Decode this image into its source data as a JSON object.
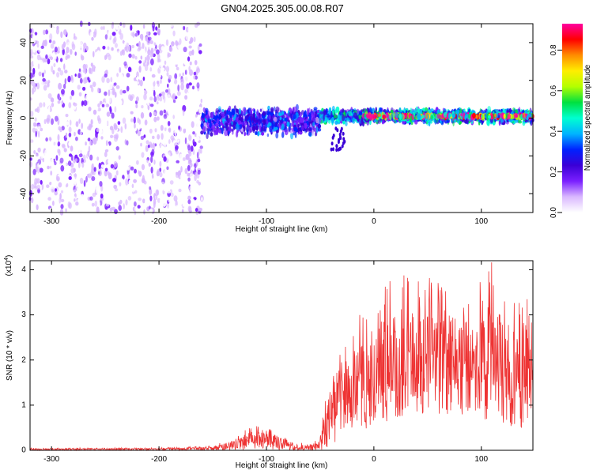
{
  "title": "GN04.2025.305.00.08.R07",
  "chart_data": [
    {
      "type": "heatmap",
      "xlabel": "Height of straight line (km)",
      "ylabel": "Frequency (Hz)",
      "xlim": [
        -320,
        148
      ],
      "ylim": [
        -50,
        50
      ],
      "x_ticks": [
        -300,
        -200,
        -100,
        0,
        100
      ],
      "x_tick_labels": [
        "-300",
        "-200",
        "-100",
        "0",
        "100"
      ],
      "y_ticks": [
        -40,
        -20,
        0,
        20,
        40
      ],
      "y_tick_labels": [
        "-40",
        "-20",
        "0",
        "20",
        "40"
      ],
      "colorbar": {
        "label": "Normalized spectral amplitude",
        "range": [
          0,
          0.93
        ],
        "ticks": [
          0.0,
          0.2,
          0.4,
          0.6,
          0.8
        ],
        "tick_labels": [
          "0.0",
          "0.2",
          "0.4",
          "0.6",
          "0.8"
        ],
        "colormap": [
          "#ffffff",
          "#d9b8ff",
          "#7a1fff",
          "#3a00d6",
          "#0022ff",
          "#00b4ff",
          "#00ffd0",
          "#00e040",
          "#b4ff00",
          "#ffee00",
          "#ff8c00",
          "#ff0000",
          "#ff00a0"
        ]
      },
      "bands": [
        {
          "x_range": [
            -320,
            -160
          ],
          "center": 0,
          "halfwidth": 50,
          "amplitude": 0.12,
          "description_color": "#7a1fff"
        },
        {
          "x_range": [
            -160,
            -50
          ],
          "center": -2,
          "halfwidth": 8,
          "amplitude": 0.3
        },
        {
          "x_range": [
            -50,
            148
          ],
          "center": 1,
          "halfwidth": 4,
          "amplitude": 0.45
        },
        {
          "x_range": [
            -10,
            148
          ],
          "center": 1,
          "halfwidth": 1,
          "amplitude": 0.85
        }
      ],
      "grid": false
    },
    {
      "type": "line",
      "xlabel": "Height of straight line (km)",
      "ylabel": "SNR (10 * v/v)",
      "y_multiplier_label": "(x10",
      "y_multiplier_exponent": "4",
      "y_multiplier_close": ")",
      "xlim": [
        -320,
        148
      ],
      "ylim": [
        0,
        4.2
      ],
      "x_ticks": [
        -300,
        -200,
        -100,
        0,
        100
      ],
      "x_tick_labels": [
        "-300",
        "-200",
        "-100",
        "0",
        "100"
      ],
      "y_ticks": [
        0,
        1,
        2,
        3,
        4
      ],
      "y_tick_labels": [
        "0",
        "1",
        "2",
        "3",
        "4"
      ],
      "series": [
        {
          "color": "#ee3333",
          "envelope": {
            "x": [
              -320,
              -200,
              -150,
              -130,
              -120,
              -110,
              -100,
              -90,
              -80,
              -70,
              -60,
              -50,
              -45,
              -40,
              -30,
              -20,
              -10,
              0,
              10,
              20,
              30,
              40,
              60,
              80,
              100,
              110,
              120,
              130,
              148
            ],
            "low": [
              0,
              0,
              0,
              0,
              0,
              0,
              0,
              0,
              0,
              0,
              0,
              0,
              0.05,
              0.1,
              0.2,
              0.3,
              0.4,
              0.5,
              0.6,
              0.7,
              0.8,
              0.8,
              0.8,
              0.7,
              0.7,
              0.6,
              0.6,
              0.5,
              0.5
            ],
            "mid": [
              0.02,
              0.03,
              0.05,
              0.1,
              0.2,
              0.3,
              0.25,
              0.15,
              0.1,
              0.05,
              0.05,
              0.1,
              0.6,
              0.8,
              1.0,
              1.1,
              1.3,
              1.4,
              1.5,
              1.6,
              1.7,
              1.8,
              1.8,
              1.8,
              1.7,
              1.7,
              1.6,
              1.5,
              1.5
            ],
            "high": [
              0.05,
              0.06,
              0.1,
              0.3,
              0.45,
              0.55,
              0.5,
              0.45,
              0.3,
              0.2,
              0.15,
              0.3,
              1.2,
              1.5,
              2.3,
              2.6,
              3.2,
              3.6,
              3.9,
              4.0,
              3.9,
              3.9,
              3.8,
              3.8,
              3.8,
              4.2,
              3.8,
              3.6,
              3.4
            ]
          }
        }
      ],
      "grid": false
    }
  ]
}
